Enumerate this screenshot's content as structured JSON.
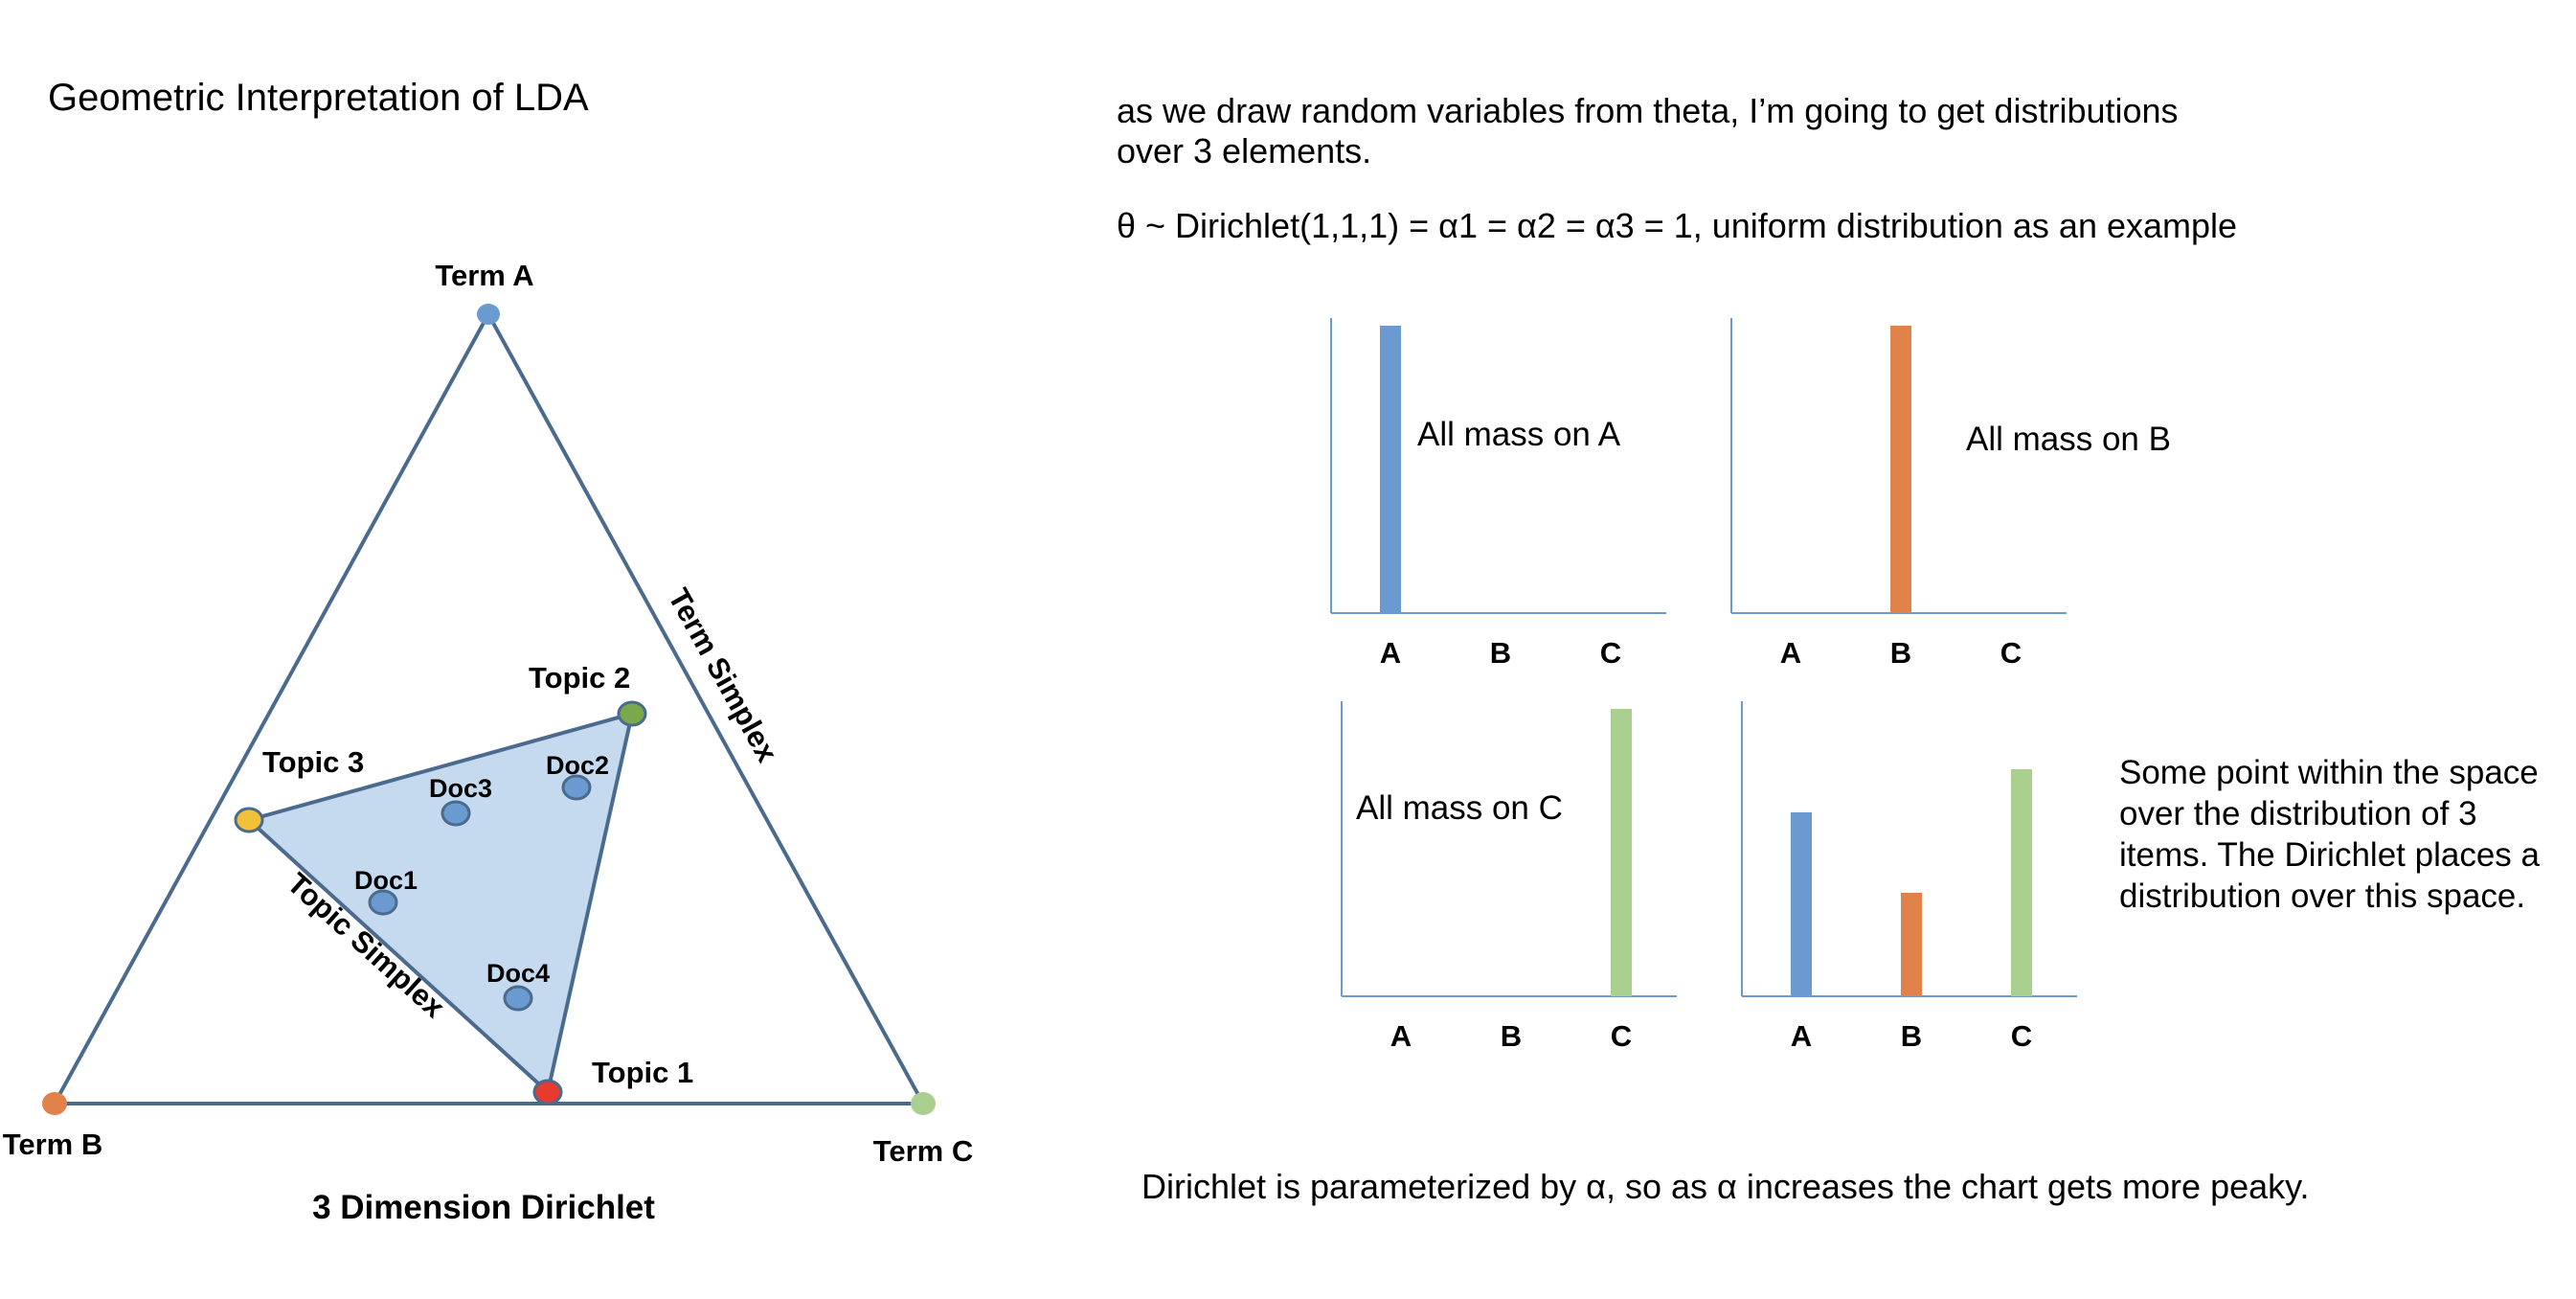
{
  "title": "Geometric Interpretation of LDA",
  "intro_line1": "as we draw random variables from theta, I’m going to get distributions",
  "intro_line2": "over 3 elements.",
  "dirichlet_eq": "θ ~ Dirichlet(1,1,1) = α1 = α2 = α3 = 1, uniform distribution as an example",
  "simplex": {
    "caption": "3 Dimension Dirichlet",
    "term_simplex_label": "Term Simplex",
    "topic_simplex_label": "Topic Simplex",
    "vertices": [
      {
        "label": "Term A",
        "color": "#6a9ad0"
      },
      {
        "label": "Term B",
        "color": "#e0824a"
      },
      {
        "label": "Term C",
        "color": "#a9d08e"
      }
    ],
    "topics": [
      {
        "label": "Topic 1",
        "color": "#e83a2f"
      },
      {
        "label": "Topic 2",
        "color": "#7aa84a"
      },
      {
        "label": "Topic 3",
        "color": "#f3c03a"
      }
    ],
    "docs": [
      {
        "label": "Doc1"
      },
      {
        "label": "Doc2"
      },
      {
        "label": "Doc3"
      },
      {
        "label": "Doc4"
      }
    ],
    "fill_color": "#c5d9ef",
    "line_color": "#4a6a8e",
    "doc_color": "#6a9ad0"
  },
  "chart_data": [
    {
      "type": "bar",
      "categories": [
        "A",
        "B",
        "C"
      ],
      "values": [
        1,
        0,
        0
      ],
      "colors": [
        "#6a9ad0",
        "#e0824a",
        "#a9d08e"
      ],
      "annotation": "All mass on A",
      "ylim": [
        0,
        1
      ]
    },
    {
      "type": "bar",
      "categories": [
        "A",
        "B",
        "C"
      ],
      "values": [
        0,
        1,
        0
      ],
      "colors": [
        "#6a9ad0",
        "#e0824a",
        "#a9d08e"
      ],
      "annotation": "All mass on B",
      "ylim": [
        0,
        1
      ]
    },
    {
      "type": "bar",
      "categories": [
        "A",
        "B",
        "C"
      ],
      "values": [
        0,
        0,
        1
      ],
      "colors": [
        "#6a9ad0",
        "#e0824a",
        "#a9d08e"
      ],
      "annotation": "All mass on C",
      "ylim": [
        0,
        1
      ]
    },
    {
      "type": "bar",
      "categories": [
        "A",
        "B",
        "C"
      ],
      "values": [
        0.64,
        0.36,
        0.79
      ],
      "colors": [
        "#6a9ad0",
        "#e0824a",
        "#a9d08e"
      ],
      "annotation": "",
      "ylim": [
        0,
        1
      ]
    }
  ],
  "side_note": "Some point within the space over the distribution of 3 items. The Dirichlet places a distribution over this space.",
  "footer": "Dirichlet is parameterized by α, so as α increases the chart gets more peaky."
}
